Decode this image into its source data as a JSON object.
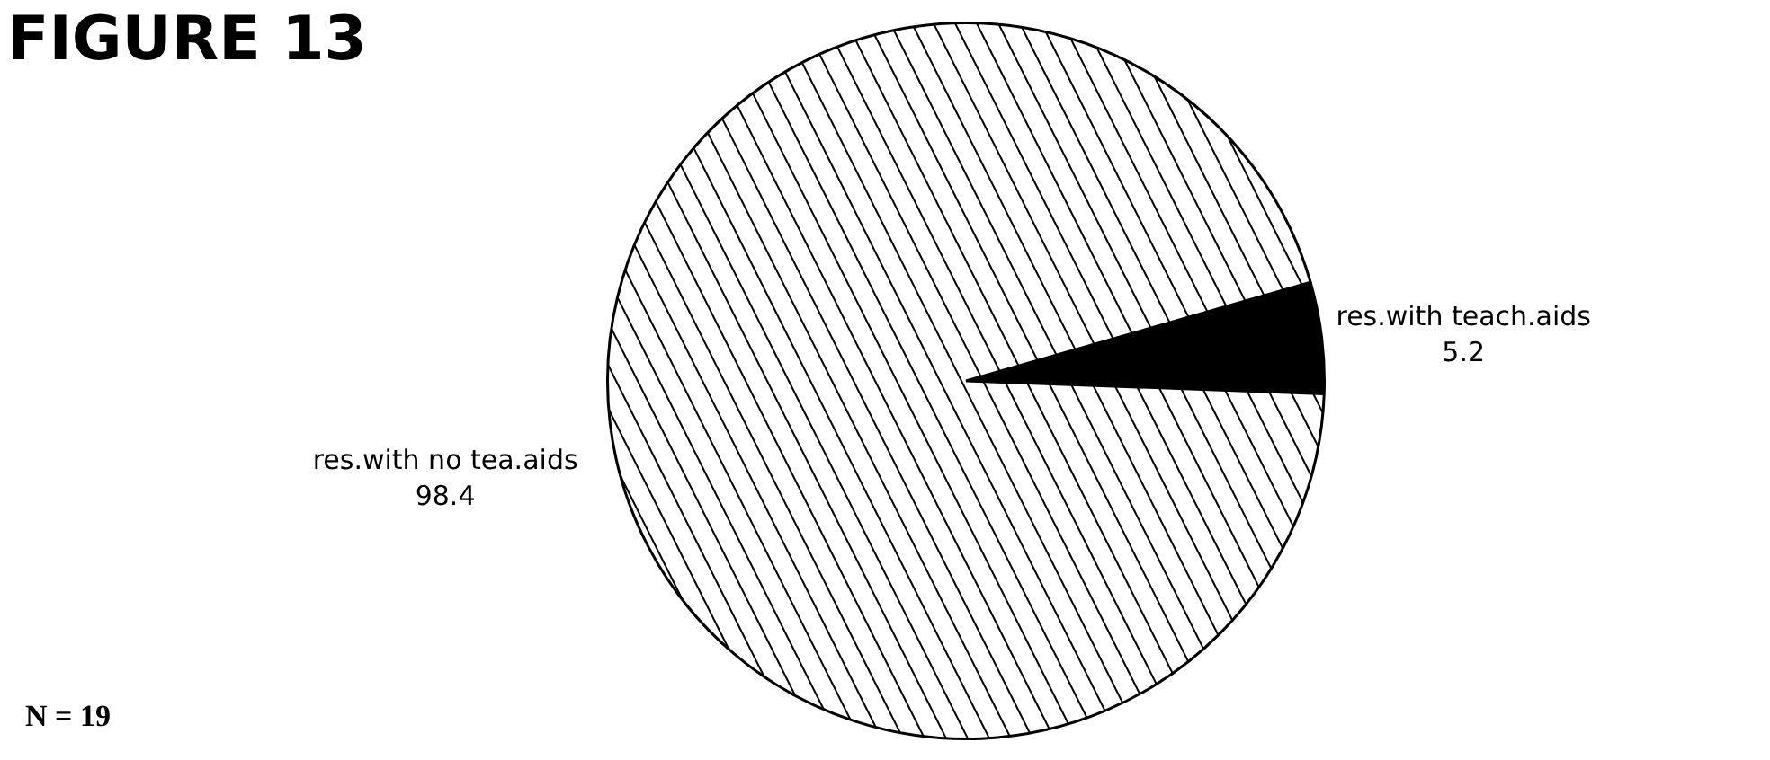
{
  "chart_data": {
    "type": "pie",
    "title": "FIGURE 13",
    "categories": [
      "res.with teach.aids",
      "res.with no tea.aids"
    ],
    "values": [
      5.2,
      98.4
    ],
    "colors": [
      "#000000",
      "#ffffff"
    ],
    "data_labels": true,
    "legend": false,
    "annotations": [
      "N = 19"
    ]
  }
}
